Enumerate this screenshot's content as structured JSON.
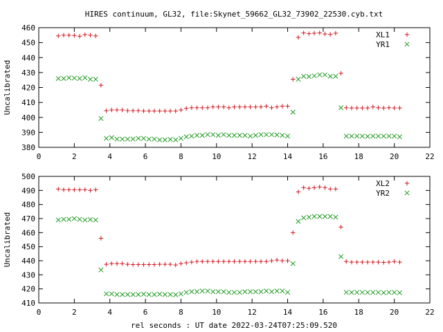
{
  "title": "HIRES continuum, GL32, file:Skynet_59662_GL32_73902_22530.cyb.txt",
  "xlabel": "rel seconds : UT date 2022-03-24T07:25:09.520",
  "colors": {
    "xl": "#d0151f",
    "yr": "#1f9a21"
  },
  "chart_data": [
    {
      "type": "scatter",
      "ylabel": "Uncalibrated",
      "xlim": [
        0,
        22
      ],
      "ylim": [
        380,
        460
      ],
      "xticks": [
        0,
        2,
        4,
        6,
        8,
        10,
        12,
        14,
        16,
        18,
        20,
        22
      ],
      "yticks": [
        380,
        390,
        400,
        410,
        420,
        430,
        440,
        450,
        460
      ],
      "legend_position": "top-right",
      "series": [
        {
          "name": "XL1",
          "marker": "plus",
          "x": [
            1.1,
            1.4,
            1.7,
            2.0,
            2.3,
            2.6,
            2.9,
            3.2,
            3.5,
            3.8,
            4.1,
            4.4,
            4.7,
            5.0,
            5.3,
            5.6,
            5.9,
            6.2,
            6.5,
            6.8,
            7.1,
            7.4,
            7.7,
            8.0,
            8.3,
            8.6,
            8.9,
            9.2,
            9.5,
            9.8,
            10.1,
            10.4,
            10.7,
            11.0,
            11.3,
            11.6,
            11.9,
            12.2,
            12.5,
            12.8,
            13.1,
            13.4,
            13.7,
            14.0,
            14.3,
            14.6,
            14.9,
            15.2,
            15.5,
            15.8,
            16.1,
            16.4,
            16.7,
            17.0,
            17.3,
            17.6,
            17.9,
            18.2,
            18.5,
            18.8,
            19.1,
            19.4,
            19.7,
            20.0,
            20.3
          ],
          "y": [
            454.5,
            455,
            455,
            454.8,
            454.3,
            455.3,
            455,
            454.5,
            421.5,
            404.5,
            405,
            405,
            405,
            404.5,
            404.5,
            404.5,
            404.3,
            404.3,
            404.3,
            404.3,
            404.3,
            404.3,
            404.3,
            405,
            406,
            406.5,
            406.5,
            406.5,
            406.5,
            407,
            407,
            407,
            406.5,
            407,
            407,
            407,
            407,
            407,
            407,
            407.5,
            406.5,
            407,
            407.5,
            407.5,
            425.5,
            453.5,
            456.5,
            456,
            456.3,
            456.5,
            455.8,
            455.5,
            456.3,
            429.5,
            406.5,
            406.3,
            406.3,
            406.3,
            406.3,
            407,
            406.5,
            406.3,
            406.5,
            406.3,
            406.3
          ]
        },
        {
          "name": "YR1",
          "marker": "x",
          "x": [
            1.1,
            1.4,
            1.7,
            2.0,
            2.3,
            2.6,
            2.9,
            3.2,
            3.5,
            3.8,
            4.1,
            4.4,
            4.7,
            5.0,
            5.3,
            5.6,
            5.9,
            6.2,
            6.5,
            6.8,
            7.1,
            7.4,
            7.7,
            8.0,
            8.3,
            8.6,
            8.9,
            9.2,
            9.5,
            9.8,
            10.1,
            10.4,
            10.7,
            11.0,
            11.3,
            11.6,
            11.9,
            12.2,
            12.5,
            12.8,
            13.1,
            13.4,
            13.7,
            14.0,
            14.3,
            14.6,
            14.9,
            15.2,
            15.5,
            15.8,
            16.1,
            16.4,
            16.7,
            17.0,
            17.3,
            17.6,
            17.9,
            18.2,
            18.5,
            18.8,
            19.1,
            19.4,
            19.7,
            20.0,
            20.3
          ],
          "y": [
            426,
            426,
            426.5,
            426.3,
            426,
            426.5,
            425.5,
            425.5,
            399.3,
            386,
            386.5,
            385.5,
            385.5,
            385.5,
            385.5,
            386,
            386,
            385.5,
            385.5,
            385,
            385,
            385.3,
            385,
            386,
            387,
            387.5,
            388,
            388,
            388.5,
            388.5,
            388,
            388.5,
            388,
            388,
            388,
            388,
            387.5,
            388,
            388.5,
            388.5,
            388.5,
            388.3,
            388,
            387.5,
            403.5,
            425.5,
            427.5,
            427.3,
            427.8,
            428.5,
            428.5,
            427.5,
            427.5,
            406.5,
            387.5,
            387.5,
            387.5,
            387.5,
            387.3,
            387.5,
            387.5,
            387.5,
            387.5,
            387.5,
            387
          ]
        }
      ]
    },
    {
      "type": "scatter",
      "ylabel": "Uncalibrated",
      "xlim": [
        0,
        22
      ],
      "ylim": [
        410,
        500
      ],
      "xticks": [
        0,
        2,
        4,
        6,
        8,
        10,
        12,
        14,
        16,
        18,
        20,
        22
      ],
      "yticks": [
        410,
        420,
        430,
        440,
        450,
        460,
        470,
        480,
        490,
        500
      ],
      "legend_position": "top-right",
      "series": [
        {
          "name": "XL2",
          "marker": "plus",
          "x": [
            1.1,
            1.4,
            1.7,
            2.0,
            2.3,
            2.6,
            2.9,
            3.2,
            3.5,
            3.8,
            4.1,
            4.4,
            4.7,
            5.0,
            5.3,
            5.6,
            5.9,
            6.2,
            6.5,
            6.8,
            7.1,
            7.4,
            7.7,
            8.0,
            8.3,
            8.6,
            8.9,
            9.2,
            9.5,
            9.8,
            10.1,
            10.4,
            10.7,
            11.0,
            11.3,
            11.6,
            11.9,
            12.2,
            12.5,
            12.8,
            13.1,
            13.4,
            13.7,
            14.0,
            14.3,
            14.6,
            14.9,
            15.2,
            15.5,
            15.8,
            16.1,
            16.4,
            16.7,
            17.0,
            17.3,
            17.6,
            17.9,
            18.2,
            18.5,
            18.8,
            19.1,
            19.4,
            19.7,
            20.0,
            20.3
          ],
          "y": [
            491,
            490.5,
            490.5,
            490.5,
            490.5,
            490.5,
            490,
            490.5,
            456,
            437.5,
            438,
            438,
            438,
            437.5,
            437.3,
            437.3,
            437.3,
            437.3,
            437.3,
            437.5,
            437.5,
            437.5,
            437,
            438,
            438.5,
            439,
            439.5,
            439.5,
            439.5,
            439.5,
            439.5,
            439.5,
            439.5,
            439.5,
            439.5,
            439.5,
            439.5,
            439.5,
            439.5,
            439.5,
            440,
            440.5,
            440,
            440,
            460,
            489,
            492,
            491.5,
            492,
            492.5,
            492,
            491,
            491,
            464,
            439.5,
            439,
            439,
            439,
            439,
            439,
            439,
            438.8,
            439,
            439.5,
            439
          ]
        },
        {
          "name": "YR2",
          "marker": "x",
          "x": [
            1.1,
            1.4,
            1.7,
            2.0,
            2.3,
            2.6,
            2.9,
            3.2,
            3.5,
            3.8,
            4.1,
            4.4,
            4.7,
            5.0,
            5.3,
            5.6,
            5.9,
            6.2,
            6.5,
            6.8,
            7.1,
            7.4,
            7.7,
            8.0,
            8.3,
            8.6,
            8.9,
            9.2,
            9.5,
            9.8,
            10.1,
            10.4,
            10.7,
            11.0,
            11.3,
            11.6,
            11.9,
            12.2,
            12.5,
            12.8,
            13.1,
            13.4,
            13.7,
            14.0,
            14.3,
            14.6,
            14.9,
            15.2,
            15.5,
            15.8,
            16.1,
            16.4,
            16.7,
            17.0,
            17.3,
            17.6,
            17.9,
            18.2,
            18.5,
            18.8,
            19.1,
            19.4,
            19.7,
            20.0,
            20.3
          ],
          "y": [
            469,
            469.5,
            469.5,
            470,
            469.5,
            469,
            469.3,
            469,
            433.5,
            416.5,
            416.5,
            416,
            416,
            416,
            416,
            416,
            416.3,
            416,
            416,
            416.3,
            416,
            416,
            415.8,
            416.5,
            417.5,
            418,
            418,
            418.5,
            418.5,
            418,
            418,
            418,
            417.5,
            417.5,
            417.5,
            418,
            418,
            418,
            418,
            418.5,
            418,
            418.5,
            418.5,
            417.5,
            438,
            468,
            470.5,
            471,
            471.5,
            471.5,
            471.5,
            471.5,
            471,
            443,
            417.5,
            417.5,
            417.5,
            417.5,
            417.5,
            417.5,
            417.5,
            417.3,
            417.5,
            417.5,
            417.3
          ]
        }
      ]
    }
  ]
}
